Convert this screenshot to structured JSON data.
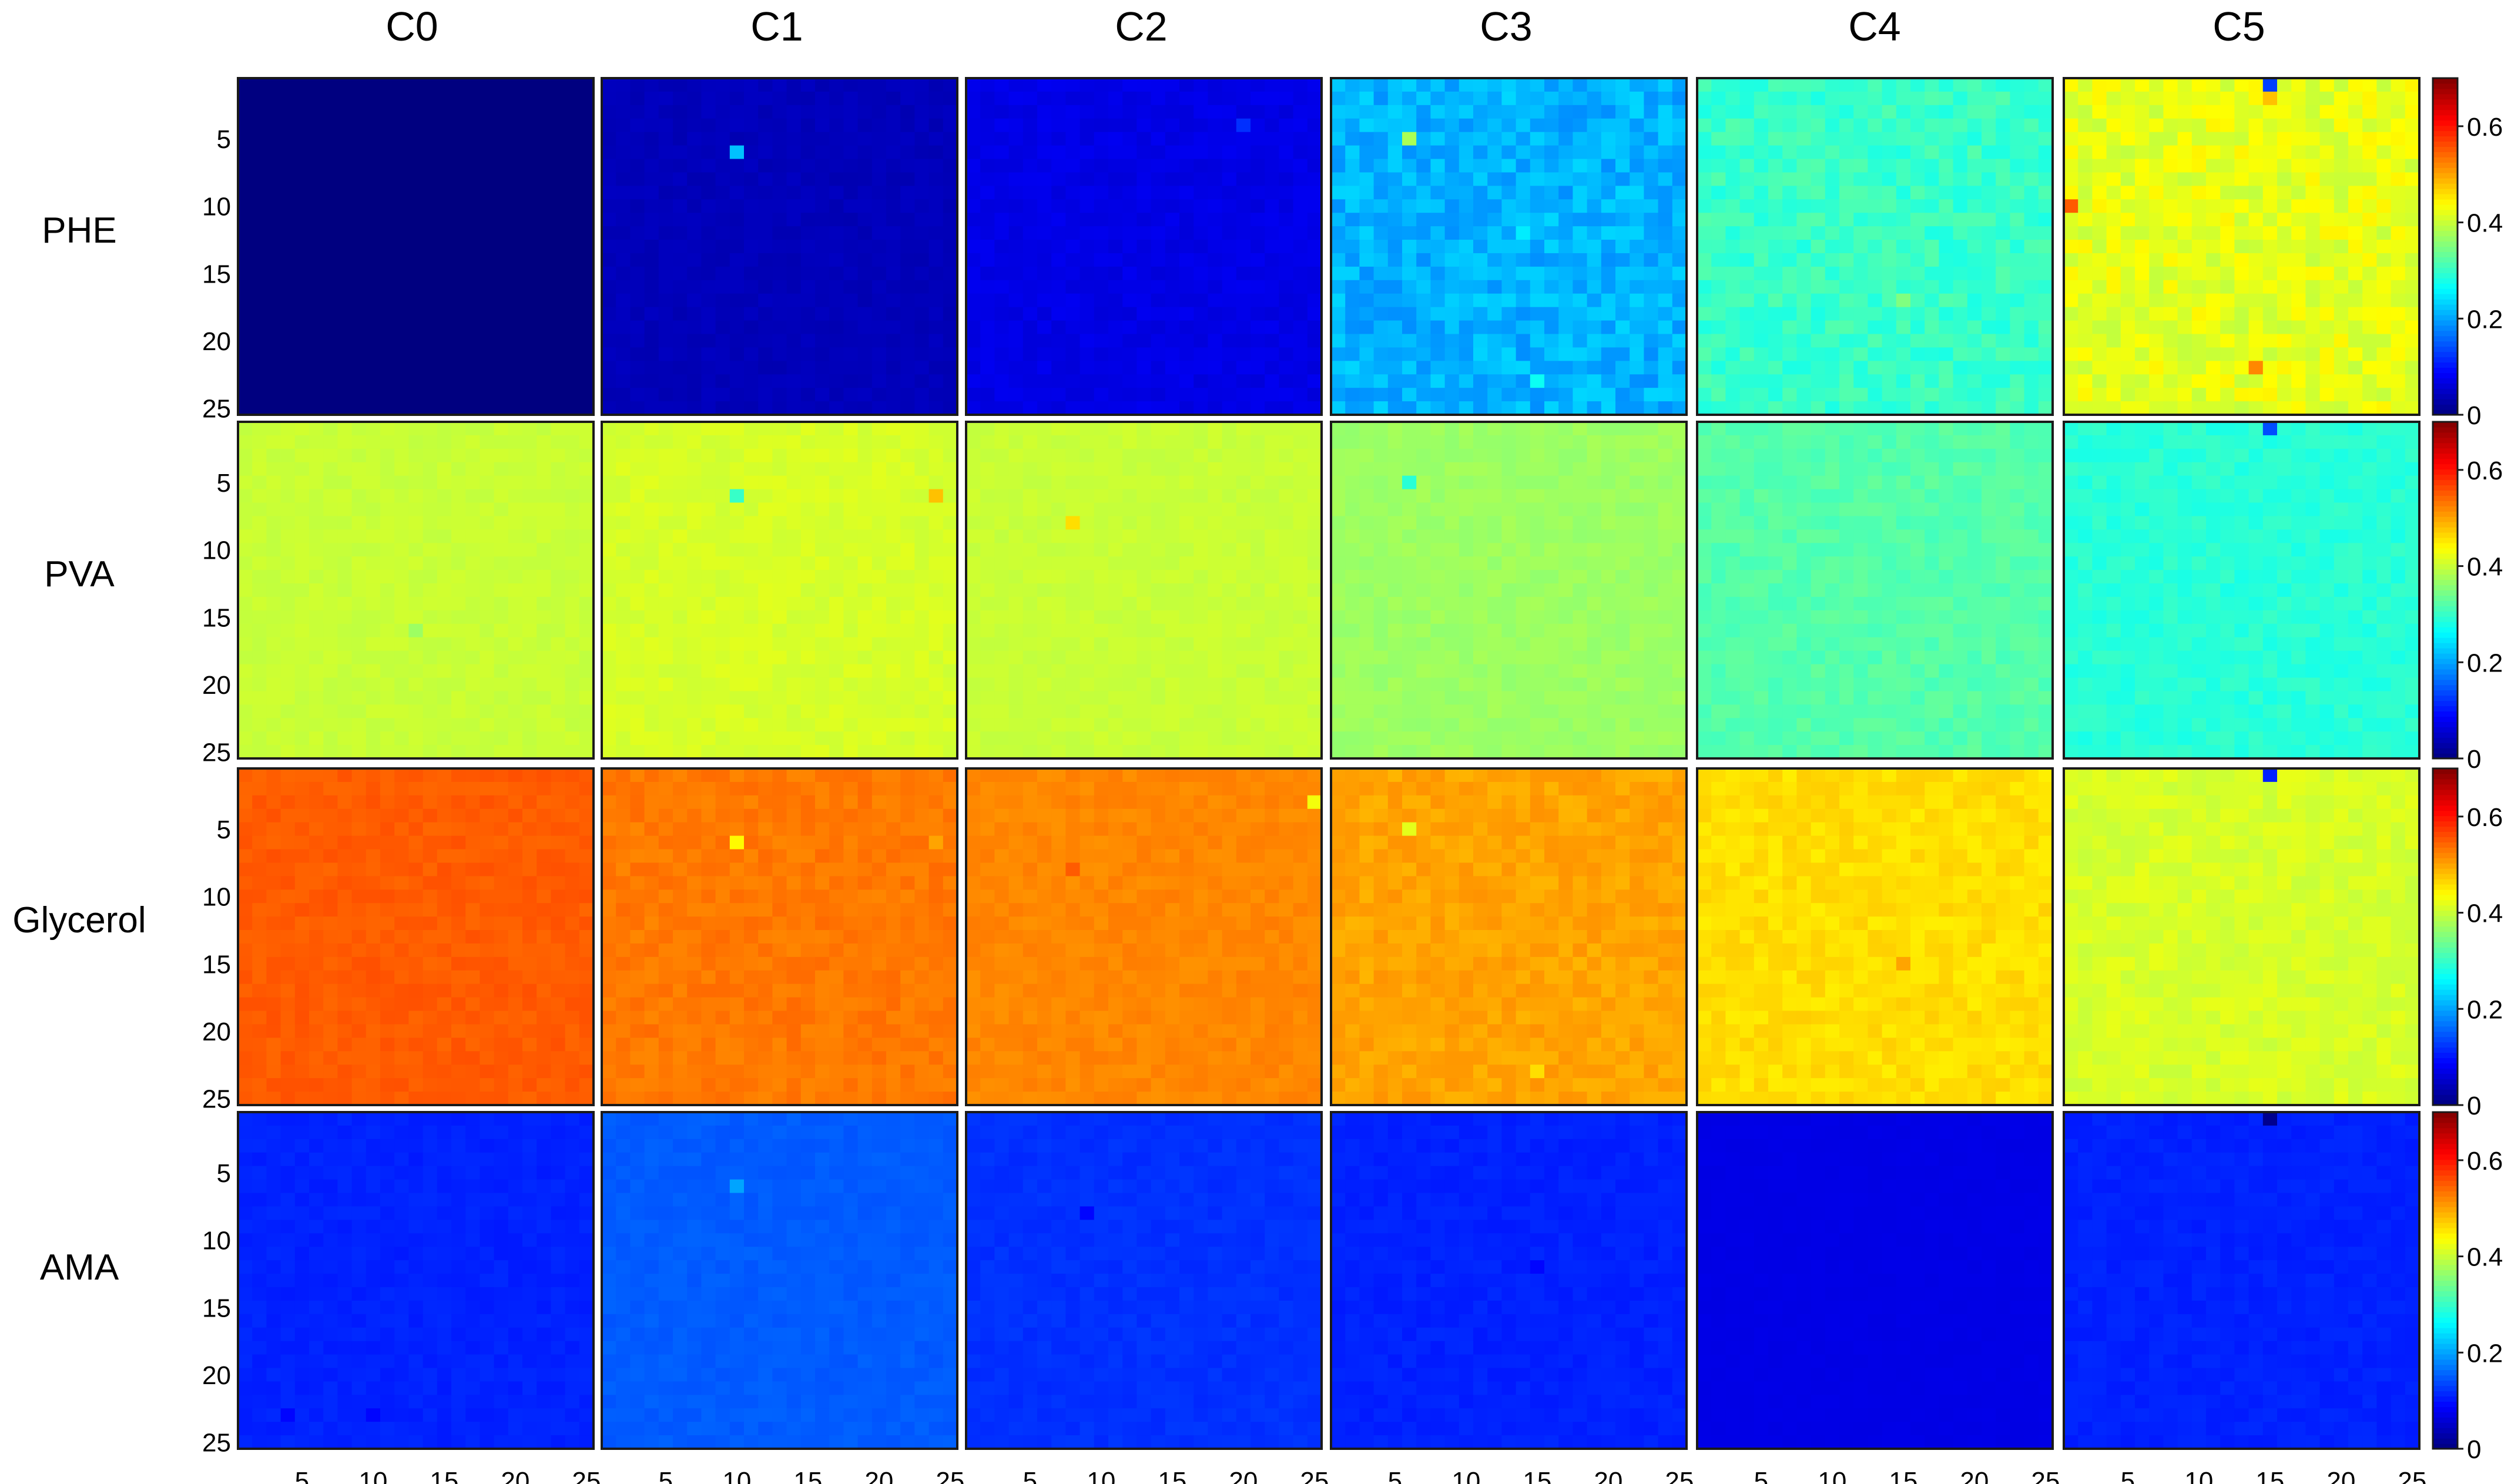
{
  "chart_data": {
    "type": "heatmap",
    "column_titles": [
      "C0",
      "C1",
      "C2",
      "C3",
      "C4",
      "C5"
    ],
    "row_titles": [
      "PHE",
      "PVA",
      "Glycerol",
      "AMA"
    ],
    "grid_size": 25,
    "x_tick_labels": [
      "5",
      "10",
      "15",
      "20",
      "25"
    ],
    "y_tick_labels": [
      "5",
      "10",
      "15",
      "20",
      "25"
    ],
    "colorbar": {
      "colormap": "jet",
      "clim": [
        0,
        0.7
      ],
      "tick_labels": [
        "0",
        "0.2",
        "0.4",
        "0.6"
      ],
      "tick_values": [
        0,
        0.2,
        0.4,
        0.6
      ]
    },
    "panels": [
      [
        {
          "base": 0.0,
          "noise": 0.0,
          "hot": []
        },
        {
          "base": 0.04,
          "noise": 0.006,
          "hot": [
            [
              10,
              6,
              0.22
            ]
          ]
        },
        {
          "base": 0.07,
          "noise": 0.008,
          "hot": [
            [
              20,
              4,
              0.12
            ]
          ]
        },
        {
          "base": 0.21,
          "noise": 0.025,
          "hot": [
            [
              6,
              5,
              0.38
            ],
            [
              14,
              12,
              0.25
            ],
            [
              10,
              17,
              0.22
            ],
            [
              15,
              23,
              0.27
            ]
          ]
        },
        {
          "base": 0.3,
          "noise": 0.02,
          "hot": [
            [
              15,
              17,
              0.35
            ]
          ]
        },
        {
          "base": 0.42,
          "noise": 0.025,
          "hot": [
            [
              15,
              1,
              0.13
            ],
            [
              1,
              10,
              0.55
            ],
            [
              14,
              22,
              0.52
            ],
            [
              15,
              2,
              0.48
            ]
          ]
        }
      ],
      [
        {
          "base": 0.4,
          "noise": 0.006,
          "hot": [
            [
              13,
              16,
              0.37
            ]
          ]
        },
        {
          "base": 0.41,
          "noise": 0.008,
          "hot": [
            [
              10,
              6,
              0.3
            ],
            [
              24,
              6,
              0.48
            ]
          ]
        },
        {
          "base": 0.4,
          "noise": 0.006,
          "hot": [
            [
              8,
              8,
              0.46
            ]
          ]
        },
        {
          "base": 0.37,
          "noise": 0.008,
          "hot": [
            [
              6,
              5,
              0.29
            ]
          ]
        },
        {
          "base": 0.32,
          "noise": 0.012,
          "hot": []
        },
        {
          "base": 0.29,
          "noise": 0.012,
          "hot": [
            [
              15,
              1,
              0.14
            ]
          ]
        }
      ],
      [
        {
          "base": 0.55,
          "noise": 0.008,
          "hot": []
        },
        {
          "base": 0.53,
          "noise": 0.01,
          "hot": [
            [
              10,
              6,
              0.44
            ],
            [
              24,
              6,
              0.5
            ]
          ]
        },
        {
          "base": 0.52,
          "noise": 0.008,
          "hot": [
            [
              25,
              3,
              0.43
            ],
            [
              8,
              8,
              0.55
            ]
          ]
        },
        {
          "base": 0.5,
          "noise": 0.012,
          "hot": [
            [
              6,
              5,
              0.42
            ],
            [
              15,
              23,
              0.46
            ]
          ]
        },
        {
          "base": 0.46,
          "noise": 0.012,
          "hot": [
            [
              15,
              15,
              0.5
            ]
          ]
        },
        {
          "base": 0.41,
          "noise": 0.012,
          "hot": [
            [
              15,
              1,
              0.11
            ]
          ]
        }
      ],
      [
        {
          "base": 0.11,
          "noise": 0.006,
          "hot": [
            [
              4,
              23,
              0.09
            ],
            [
              10,
              23,
              0.09
            ]
          ]
        },
        {
          "base": 0.15,
          "noise": 0.006,
          "hot": [
            [
              10,
              6,
              0.2
            ]
          ]
        },
        {
          "base": 0.12,
          "noise": 0.006,
          "hot": [
            [
              9,
              8,
              0.09
            ]
          ]
        },
        {
          "base": 0.11,
          "noise": 0.006,
          "hot": [
            [
              15,
              12,
              0.09
            ]
          ]
        },
        {
          "base": 0.07,
          "noise": 0.002,
          "hot": []
        },
        {
          "base": 0.11,
          "noise": 0.006,
          "hot": [
            [
              15,
              1,
              0.01
            ]
          ]
        }
      ]
    ]
  }
}
